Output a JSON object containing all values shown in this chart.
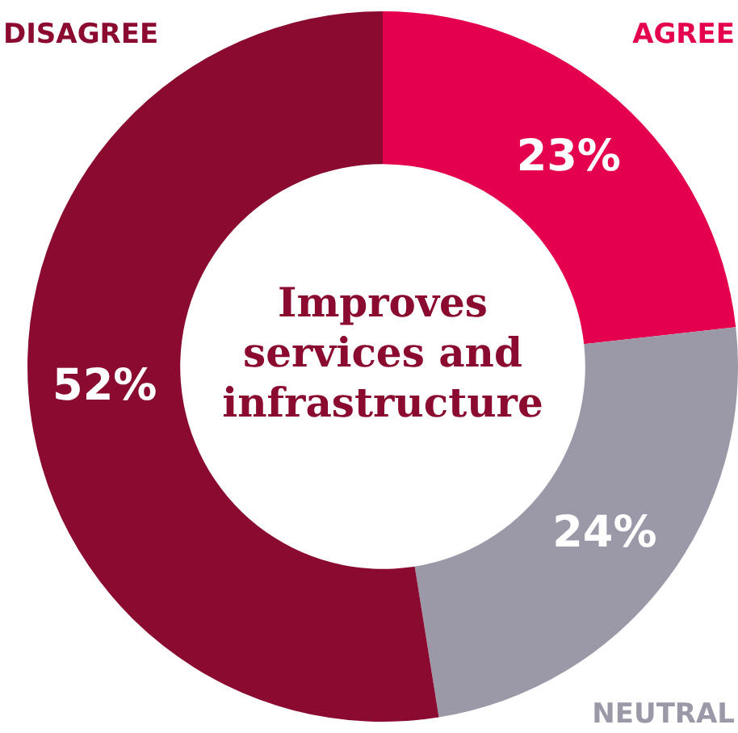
{
  "chart_data": {
    "type": "donut",
    "title": "Improves services and infrastructure",
    "categories": [
      "AGREE",
      "NEUTRAL",
      "DISAGREE"
    ],
    "values": [
      23,
      24,
      52
    ],
    "colors": [
      "#e4004f",
      "#9b98a8",
      "#8b0a2f"
    ],
    "value_labels": [
      "23%",
      "24%",
      "52%"
    ],
    "legend": false
  }
}
